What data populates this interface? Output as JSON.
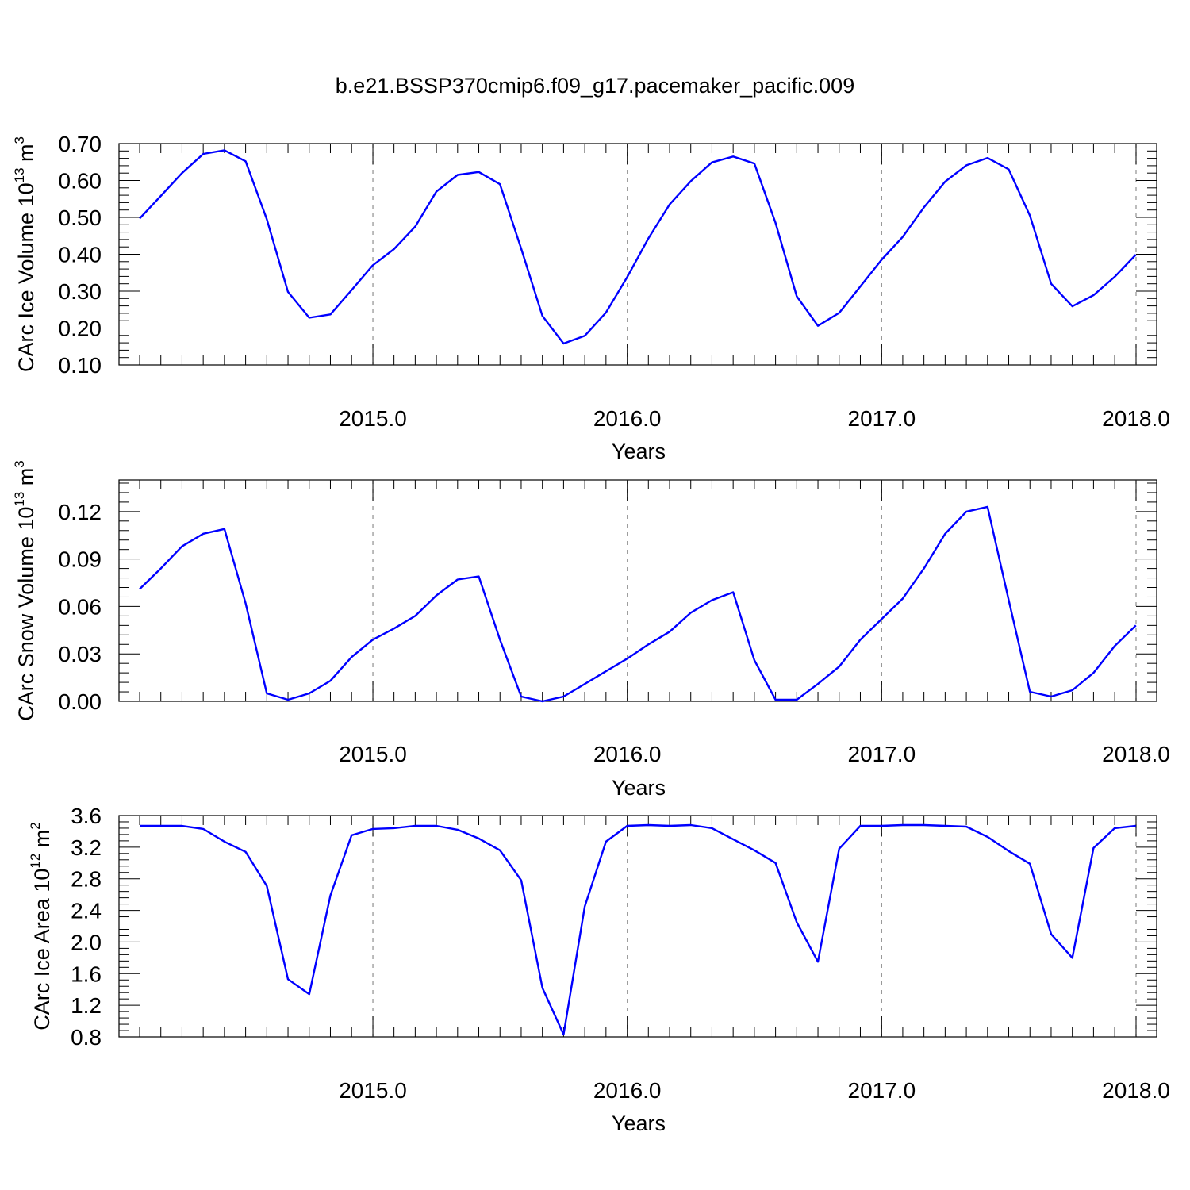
{
  "title": "b.e21.BSSP370cmip6.f09_g17.pacemaker_pacific.009",
  "colors": {
    "line": "#0000ff",
    "grid": "#999999",
    "axis": "#000000"
  },
  "chart_data": [
    {
      "type": "line",
      "ylabel": "CArc Ice Volume 10",
      "ylabel_exp": "13",
      "ylabel_unit": " m",
      "ylabel_unit_exp": "3",
      "xlabel": "Years",
      "xlim": [
        2014.083,
        2018.083
      ],
      "ylim": [
        0.1,
        0.7
      ],
      "yticks": [
        0.1,
        0.2,
        0.3,
        0.4,
        0.5,
        0.6,
        0.7
      ],
      "ytick_labels": [
        "0.10",
        "0.20",
        "0.30",
        "0.40",
        "0.50",
        "0.60",
        "0.70"
      ],
      "yminor_step": 0.02,
      "xticks": [
        2015,
        2016,
        2017,
        2018
      ],
      "xtick_labels": [
        "2015.0",
        "2016.0",
        "2017.0",
        "2018.0"
      ],
      "grid_x": true,
      "x_start": 2014.083,
      "x_step": 0.08333,
      "values": [
        0.497,
        0.558,
        0.62,
        0.672,
        0.682,
        0.652,
        0.495,
        0.298,
        0.228,
        0.237,
        0.303,
        0.37,
        0.414,
        0.475,
        0.57,
        0.615,
        0.623,
        0.59,
        0.415,
        0.233,
        0.158,
        0.179,
        0.242,
        0.338,
        0.443,
        0.535,
        0.598,
        0.649,
        0.665,
        0.646,
        0.485,
        0.286,
        0.206,
        0.241,
        0.313,
        0.385,
        0.447,
        0.527,
        0.597,
        0.641,
        0.661,
        0.63,
        0.505,
        0.32,
        0.259,
        0.289,
        0.339,
        0.399
      ]
    },
    {
      "type": "line",
      "ylabel": "CArc Snow Volume 10",
      "ylabel_exp": "13",
      "ylabel_unit": " m",
      "ylabel_unit_exp": "3",
      "xlabel": "Years",
      "xlim": [
        2014.083,
        2018.083
      ],
      "ylim": [
        0.0,
        0.14
      ],
      "yticks": [
        0.0,
        0.03,
        0.06,
        0.09,
        0.12
      ],
      "ytick_labels": [
        "0.00",
        "0.03",
        "0.06",
        "0.09",
        "0.12"
      ],
      "yminor_step": 0.006,
      "xticks": [
        2015,
        2016,
        2017,
        2018
      ],
      "xtick_labels": [
        "2015.0",
        "2016.0",
        "2017.0",
        "2018.0"
      ],
      "grid_x": true,
      "x_start": 2014.083,
      "x_step": 0.08333,
      "values": [
        0.071,
        0.084,
        0.098,
        0.106,
        0.109,
        0.062,
        0.005,
        0.001,
        0.005,
        0.013,
        0.028,
        0.039,
        0.046,
        0.054,
        0.067,
        0.077,
        0.079,
        0.039,
        0.003,
        0.0,
        0.003,
        0.011,
        0.019,
        0.027,
        0.036,
        0.044,
        0.056,
        0.064,
        0.069,
        0.026,
        0.001,
        0.001,
        0.011,
        0.022,
        0.039,
        0.052,
        0.065,
        0.084,
        0.106,
        0.12,
        0.123,
        0.064,
        0.006,
        0.003,
        0.007,
        0.018,
        0.035,
        0.048
      ]
    },
    {
      "type": "line",
      "ylabel": "CArc Ice Area 10",
      "ylabel_exp": "12",
      "ylabel_unit": " m",
      "ylabel_unit_exp": "2",
      "xlabel": "Years",
      "xlim": [
        2014.083,
        2018.083
      ],
      "ylim": [
        0.8,
        3.6
      ],
      "yticks": [
        0.8,
        1.2,
        1.6,
        2.0,
        2.4,
        2.8,
        3.2,
        3.6
      ],
      "ytick_labels": [
        "0.8",
        "1.2",
        "1.6",
        "2.0",
        "2.4",
        "2.8",
        "3.2",
        "3.6"
      ],
      "yminor_step": 0.08,
      "xticks": [
        2015,
        2016,
        2017,
        2018
      ],
      "xtick_labels": [
        "2015.0",
        "2016.0",
        "2017.0",
        "2018.0"
      ],
      "grid_x": true,
      "x_start": 2014.083,
      "x_step": 0.08333,
      "values": [
        3.47,
        3.47,
        3.47,
        3.43,
        3.27,
        3.14,
        2.71,
        1.53,
        1.34,
        2.59,
        3.35,
        3.43,
        3.44,
        3.47,
        3.47,
        3.42,
        3.31,
        3.16,
        2.78,
        1.42,
        0.83,
        2.45,
        3.27,
        3.47,
        3.48,
        3.47,
        3.48,
        3.44,
        3.3,
        3.16,
        3.0,
        2.25,
        1.75,
        3.18,
        3.47,
        3.47,
        3.48,
        3.48,
        3.47,
        3.46,
        3.33,
        3.15,
        2.99,
        2.1,
        1.8,
        3.19,
        3.44,
        3.47
      ]
    }
  ]
}
